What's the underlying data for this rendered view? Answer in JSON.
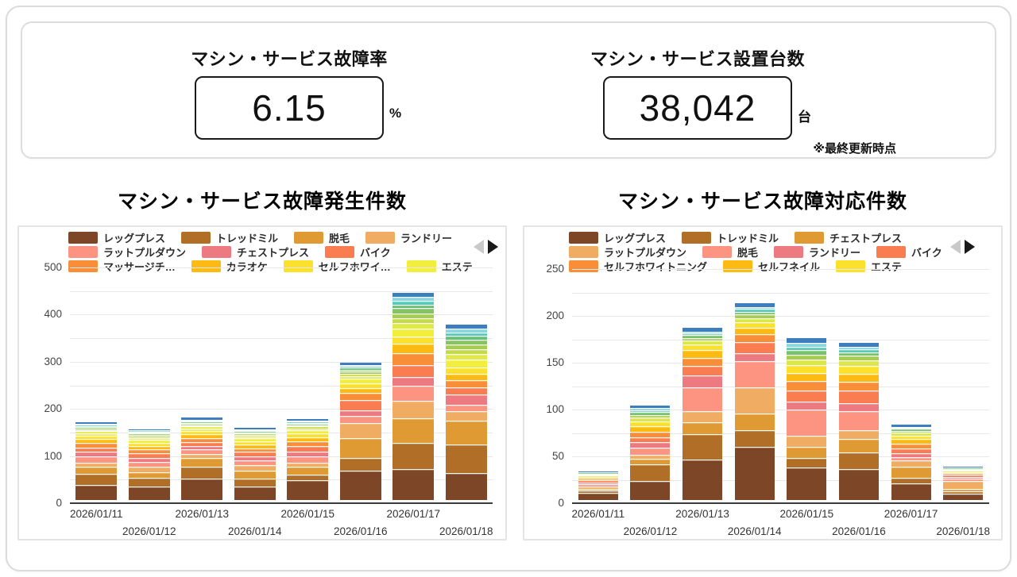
{
  "kpis": {
    "failure_rate": {
      "title": "マシン・サービス故障率",
      "value": "6.15",
      "unit": "%"
    },
    "installed": {
      "title": "マシン・サービス設置台数",
      "value": "38,042",
      "unit": "台",
      "note": "※最終更新時点"
    }
  },
  "icons": {
    "legend_prev_color": "#C9C9C9",
    "legend_next_color": "#1A1A1A"
  },
  "chart_data": [
    {
      "type": "bar",
      "stacked": true,
      "title": "マシン・サービス故障発生件数",
      "xlabel": "",
      "ylabel": "",
      "ylim": [
        0,
        500
      ],
      "y_label_step": 100,
      "grid_step": 50,
      "grid": true,
      "legend_position": "top",
      "legend_nav": {
        "prev_enabled": false,
        "next_enabled": true
      },
      "legend_rows": [
        [
          0,
          1,
          2,
          3
        ],
        [
          4,
          5,
          6
        ],
        [
          7,
          8,
          9,
          10
        ]
      ],
      "categories": [
        "2026/01/11",
        "2026/01/12",
        "2026/01/13",
        "2026/01/14",
        "2026/01/15",
        "2026/01/16",
        "2026/01/17",
        "2026/01/18"
      ],
      "totals": [
        165,
        150,
        173,
        153,
        170,
        292,
        440,
        372
      ],
      "series": [
        {
          "name": "レッグプレス",
          "color": "#7D4627",
          "values": [
            32,
            28,
            45,
            28,
            42,
            62,
            65,
            58
          ]
        },
        {
          "name": "トレッドミル",
          "color": "#B06E27",
          "values": [
            24,
            20,
            25,
            18,
            12,
            28,
            56,
            60
          ]
        },
        {
          "name": "脱毛",
          "color": "#E09A33",
          "values": [
            14,
            11,
            20,
            16,
            16,
            42,
            52,
            50
          ]
        },
        {
          "name": "ランドリー",
          "color": "#EFAC62",
          "values": [
            10,
            12,
            8,
            12,
            10,
            32,
            38,
            20
          ]
        },
        {
          "name": "ラットプルダウン",
          "color": "#FD9482",
          "values": [
            12,
            10,
            9,
            10,
            12,
            14,
            32,
            14
          ]
        },
        {
          "name": "チェストプレス",
          "color": "#ED7A80",
          "values": [
            10,
            9,
            8,
            9,
            10,
            12,
            18,
            22
          ]
        },
        {
          "name": "バイク",
          "color": "#FA7D52",
          "values": [
            10,
            9,
            8,
            9,
            12,
            22,
            26,
            16
          ]
        },
        {
          "name": "マッサージチ…",
          "color": "#F88F38",
          "values": [
            9,
            8,
            8,
            8,
            10,
            16,
            24,
            14
          ]
        },
        {
          "name": "カラオケ",
          "color": "#FCBA12",
          "values": [
            8,
            8,
            8,
            8,
            9,
            10,
            20,
            14
          ]
        },
        {
          "name": "セルフホワイ…",
          "color": "#FCE12C",
          "values": [
            7,
            7,
            7,
            7,
            8,
            10,
            16,
            14
          ]
        },
        {
          "name": "エステ",
          "color": "#F2EE3E",
          "values": [
            6,
            6,
            6,
            6,
            7,
            9,
            16,
            16
          ]
        },
        {
          "name": "",
          "color": "#E0E84A",
          "values": [
            4,
            4,
            4,
            4,
            4,
            6,
            12,
            12
          ]
        },
        {
          "name": "",
          "color": "#C3DA4B",
          "values": [
            3,
            3,
            3,
            3,
            4,
            5,
            10,
            10
          ]
        },
        {
          "name": "",
          "color": "#A5CE51",
          "values": [
            3,
            3,
            3,
            3,
            3,
            5,
            10,
            10
          ]
        },
        {
          "name": "",
          "color": "#84C462",
          "values": [
            3,
            3,
            2,
            3,
            3,
            4,
            12,
            10
          ]
        },
        {
          "name": "",
          "color": "#68BE77",
          "values": [
            2,
            2,
            2,
            2,
            2,
            4,
            8,
            8
          ]
        },
        {
          "name": "",
          "color": "#5BC9B9",
          "values": [
            2,
            2,
            2,
            2,
            2,
            3,
            8,
            8
          ]
        },
        {
          "name": "",
          "color": "#87D8DE",
          "values": [
            2,
            2,
            1,
            2,
            1,
            3,
            8,
            8
          ]
        },
        {
          "name": "",
          "color": "#3E7DBE",
          "values": [
            4,
            3,
            4,
            3,
            3,
            5,
            9,
            8
          ]
        }
      ]
    },
    {
      "type": "bar",
      "stacked": true,
      "title": "マシン・サービス故障対応件数",
      "xlabel": "",
      "ylabel": "",
      "ylim": [
        0,
        250
      ],
      "y_label_step": 50,
      "grid_step": 25,
      "grid": true,
      "legend_position": "top",
      "legend_nav": {
        "prev_enabled": false,
        "next_enabled": true
      },
      "legend_rows": [
        [
          0,
          1,
          2
        ],
        [
          3,
          4,
          5,
          6
        ],
        [
          7,
          8,
          9
        ]
      ],
      "categories": [
        "2026/01/11",
        "2026/01/12",
        "2026/01/13",
        "2026/01/14",
        "2026/01/15",
        "2026/01/16",
        "2026/01/17",
        "2026/01/18"
      ],
      "totals": [
        30,
        101,
        184,
        210,
        173,
        168,
        80,
        35
      ],
      "series": [
        {
          "name": "レッグプレス",
          "color": "#7D4627",
          "values": [
            8,
            20,
            43,
            57,
            35,
            33,
            18,
            7
          ]
        },
        {
          "name": "トレッドミル",
          "color": "#B06E27",
          "values": [
            2,
            18,
            27,
            18,
            10,
            18,
            6,
            2
          ]
        },
        {
          "name": "チェストプレス",
          "color": "#E09A33",
          "values": [
            2,
            6,
            13,
            17,
            12,
            14,
            12,
            3
          ]
        },
        {
          "name": "ラットプルダウン",
          "color": "#EFAC62",
          "values": [
            2,
            4,
            12,
            28,
            12,
            10,
            6,
            8
          ]
        },
        {
          "name": "脱毛",
          "color": "#FD9482",
          "values": [
            3,
            8,
            25,
            28,
            28,
            20,
            4,
            3
          ]
        },
        {
          "name": "ランドリー",
          "color": "#ED7A80",
          "values": [
            2,
            6,
            13,
            9,
            8,
            8,
            4,
            2
          ]
        },
        {
          "name": "バイク",
          "color": "#FA7D52",
          "values": [
            2,
            5,
            10,
            12,
            12,
            14,
            5,
            2
          ]
        },
        {
          "name": "セルフホワイトニング",
          "color": "#F88F38",
          "values": [
            2,
            6,
            9,
            8,
            10,
            9,
            5,
            2
          ]
        },
        {
          "name": "セルフネイル",
          "color": "#FCBA12",
          "values": [
            2,
            6,
            8,
            7,
            9,
            9,
            5,
            1
          ]
        },
        {
          "name": "エステ",
          "color": "#FCE12C",
          "values": [
            1,
            5,
            6,
            6,
            8,
            8,
            4,
            1
          ]
        },
        {
          "name": "",
          "color": "#DCE64A",
          "values": [
            1,
            4,
            4,
            4,
            6,
            6,
            3,
            1
          ]
        },
        {
          "name": "",
          "color": "#A5CE51",
          "values": [
            1,
            3,
            3,
            4,
            5,
            5,
            2,
            1
          ]
        },
        {
          "name": "",
          "color": "#79C16A",
          "values": [
            1,
            3,
            3,
            3,
            5,
            4,
            2,
            1
          ]
        },
        {
          "name": "",
          "color": "#5BC9B9",
          "values": [
            0,
            2,
            2,
            3,
            4,
            3,
            1,
            0
          ]
        },
        {
          "name": "",
          "color": "#87D8DE",
          "values": [
            0,
            2,
            2,
            2,
            4,
            3,
            1,
            0
          ]
        },
        {
          "name": "",
          "color": "#3E7DBE",
          "values": [
            1,
            3,
            4,
            4,
            5,
            4,
            2,
            1
          ]
        }
      ]
    }
  ]
}
